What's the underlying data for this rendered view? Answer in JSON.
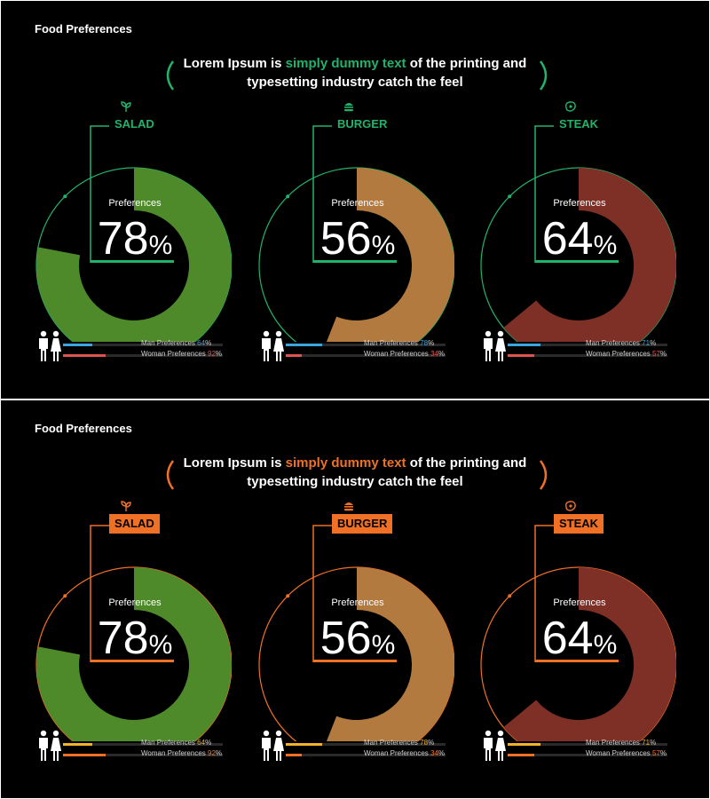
{
  "slides": [
    {
      "title": "Food Preferences",
      "headline": {
        "pre": "Lorem Ipsum is ",
        "hl": "simply dummy text",
        "post": " of the printing and typesetting industry catch the feel"
      },
      "accent": "#22b36a",
      "label_style": "outline",
      "man_bar_color": "#3aa6dd",
      "woman_bar_color": "#e0534f",
      "man_value_color": "#3aa6dd",
      "woman_value_color": "#e0534f"
    },
    {
      "title": "Food Preferences",
      "headline": {
        "pre": "Lorem Ipsum is ",
        "hl": "simply dummy text",
        "post": " of the printing and typesetting industry catch the feel"
      },
      "accent": "#f07126",
      "label_style": "filled",
      "man_bar_color": "#f2b22b",
      "woman_bar_color": "#f07126",
      "man_value_color": "#f2b22b",
      "woman_value_color": "#f07126"
    }
  ],
  "chart_data": {
    "type": "pie",
    "title": "Food Preferences",
    "categories": [
      "SALAD",
      "BURGER",
      "STEAK"
    ],
    "icons": [
      "leaf-icon",
      "burger-icon",
      "steak-icon"
    ],
    "preferences_label": "Preferences",
    "values": [
      78,
      56,
      64
    ],
    "unit": "%",
    "man_label": "Man Preferences",
    "woman_label": "Woman Preferences",
    "series": [
      {
        "name": "Man Preferences",
        "values": [
          64,
          78,
          71
        ]
      },
      {
        "name": "Woman Preferences",
        "values": [
          92,
          34,
          57
        ]
      }
    ],
    "photo_colors": [
      "#4e8a2a",
      "#b27a3e",
      "#7e2f26"
    ]
  }
}
